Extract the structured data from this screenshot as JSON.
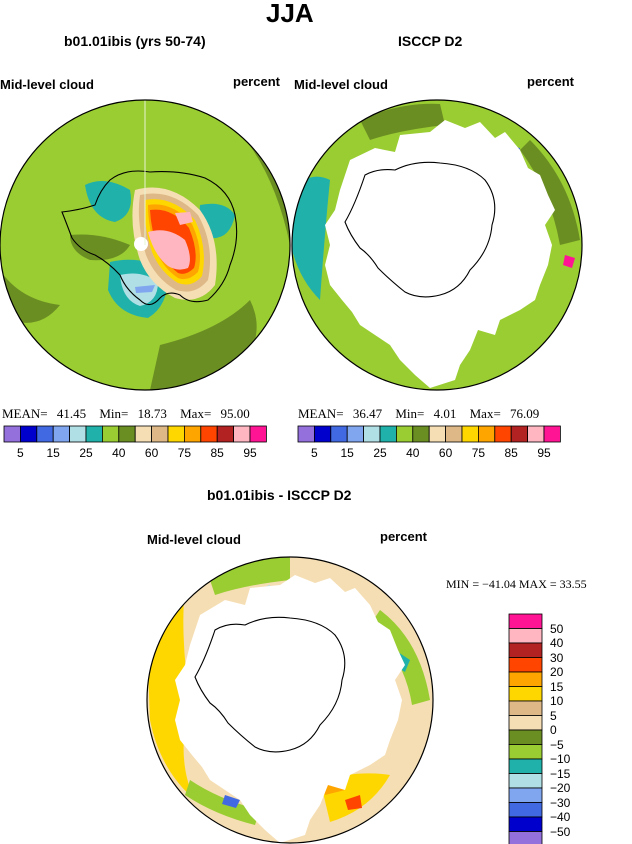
{
  "season_title": "JJA",
  "panel_left": {
    "title": "b01.01ibis (yrs 50-74)",
    "variable": "Mid-level cloud",
    "units": "percent",
    "stats": {
      "mean_label": "MEAN=",
      "mean": "41.45",
      "min_label": "Min=",
      "min": "18.73",
      "max_label": "Max=",
      "max": "95.00"
    }
  },
  "panel_right": {
    "title": "ISCCP D2",
    "variable": "Mid-level cloud",
    "units": "percent",
    "stats": {
      "mean_label": "MEAN=",
      "mean": "36.47",
      "min_label": "Min=",
      "min": "4.01",
      "max_label": "Max=",
      "max": "76.09"
    }
  },
  "panel_diff": {
    "title": "b01.01ibis - ISCCP D2",
    "variable": "Mid-level cloud",
    "units": "percent",
    "minmax": "MIN = −41.04   MAX =   33.55"
  },
  "colorbar_abs": {
    "colors": [
      "#9370db",
      "#0000cd",
      "#4169e1",
      "#7fa6ee",
      "#b0e0e6",
      "#20b2aa",
      "#9acd32",
      "#6b8e23",
      "#f5deb3",
      "#deb887",
      "#ffd700",
      "#ffa500",
      "#ff4500",
      "#b22222",
      "#ffb6c1",
      "#ff1493"
    ],
    "tick_labels": [
      "5",
      "15",
      "25",
      "40",
      "60",
      "75",
      "85",
      "95"
    ]
  },
  "colorbar_diff": {
    "colors": [
      "#9370db",
      "#0000cd",
      "#4169e1",
      "#7fa6ee",
      "#b0e0e6",
      "#20b2aa",
      "#9acd32",
      "#6b8e23",
      "#f5deb3",
      "#deb887",
      "#ffd700",
      "#ffa500",
      "#ff4500",
      "#b22222",
      "#ffb6c1",
      "#ff1493"
    ],
    "tick_labels": [
      "50",
      "40",
      "30",
      "20",
      "15",
      "10",
      "5",
      "0",
      "−5",
      "−10",
      "−15",
      "−20",
      "−30",
      "−40",
      "−50"
    ]
  },
  "chart_data": [
    {
      "type": "heatmap",
      "title": "b01.01ibis (yrs 50-74)",
      "variable": "Mid-level cloud",
      "units": "percent",
      "projection": "south polar stereographic",
      "season": "JJA",
      "mean": 41.45,
      "min": 18.73,
      "max": 95.0,
      "contour_levels": [
        5,
        10,
        15,
        20,
        25,
        30,
        40,
        50,
        60,
        70,
        75,
        80,
        85,
        90,
        95
      ]
    },
    {
      "type": "heatmap",
      "title": "ISCCP D2",
      "variable": "Mid-level cloud",
      "units": "percent",
      "projection": "south polar stereographic",
      "season": "JJA",
      "mean": 36.47,
      "min": 4.01,
      "max": 76.09,
      "contour_levels": [
        5,
        10,
        15,
        20,
        25,
        30,
        40,
        50,
        60,
        70,
        75,
        80,
        85,
        90,
        95
      ]
    },
    {
      "type": "heatmap",
      "title": "b01.01ibis - ISCCP D2",
      "variable": "Mid-level cloud",
      "units": "percent",
      "projection": "south polar stereographic",
      "season": "JJA",
      "min": -41.04,
      "max": 33.55,
      "contour_levels": [
        -50,
        -40,
        -30,
        -20,
        -15,
        -10,
        -5,
        0,
        5,
        10,
        15,
        20,
        30,
        40,
        50
      ]
    }
  ]
}
